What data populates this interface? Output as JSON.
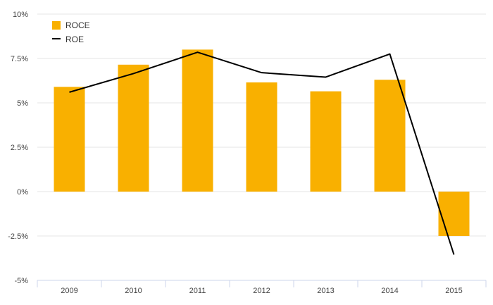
{
  "chart_data": {
    "type": "bar",
    "title": "",
    "xlabel": "",
    "ylabel": "",
    "categories": [
      "2009",
      "2010",
      "2011",
      "2012",
      "2013",
      "2014",
      "2015"
    ],
    "ylim": [
      -5,
      10
    ],
    "y_ticks": [
      10,
      7.5,
      5,
      2.5,
      0,
      -2.5,
      -5
    ],
    "y_tick_labels": [
      "10%",
      "7.5%",
      "5%",
      "2.5%",
      "0%",
      "-2.5%",
      "-5%"
    ],
    "grid": true,
    "legend_position": "top-left",
    "series": [
      {
        "name": "ROCE",
        "type": "bar",
        "color": "#F9B000",
        "values": [
          5.9,
          7.15,
          8.0,
          6.15,
          5.65,
          6.3,
          -2.5
        ]
      },
      {
        "name": "ROE",
        "type": "line",
        "color": "#000000",
        "values": [
          5.6,
          6.65,
          7.85,
          6.7,
          6.45,
          7.75,
          -3.55
        ]
      }
    ]
  }
}
